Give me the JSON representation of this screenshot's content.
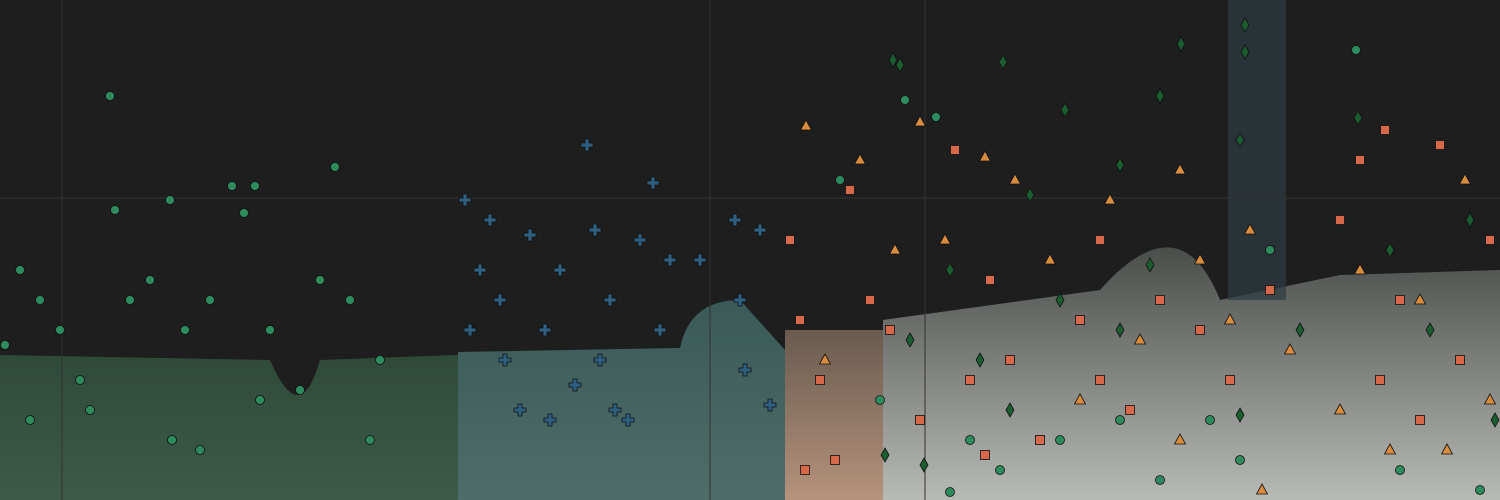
{
  "chart_data": {
    "type": "scatter",
    "xlim": [
      0,
      150
    ],
    "ylim": [
      0,
      100
    ],
    "series": [
      {
        "marker": "circle",
        "color": "#2e8b5e",
        "x": [
          0.5,
          2,
          4,
          6,
          8,
          11,
          11.5,
          13,
          15,
          17,
          18.5,
          21,
          23.2,
          24.4,
          25.5,
          27,
          30,
          32,
          33.5,
          35,
          37,
          38,
          3,
          9,
          20,
          17.2,
          26,
          88,
          90.5,
          93.6,
          95,
          100,
          106,
          112,
          116,
          124,
          127,
          135.6,
          140,
          148,
          139,
          84,
          97,
          121
        ],
        "values": [
          31,
          46,
          40,
          34,
          24,
          80.8,
          58,
          40,
          44,
          60,
          34,
          40,
          62.8,
          57.4,
          62.8,
          34,
          22,
          44,
          66.6,
          40,
          12,
          28,
          16,
          18,
          10,
          12,
          20,
          20,
          80,
          76.6,
          1.6,
          6,
          12,
          16,
          4,
          8,
          50,
          90,
          6,
          2,
          50,
          64,
          12,
          16
        ]
      },
      {
        "marker": "plus",
        "color": "#2f5f80",
        "x": [
          46.5,
          47,
          49,
          50,
          52,
          53,
          54.5,
          56,
          57.5,
          58.7,
          59.5,
          61,
          62.8,
          64,
          65.3,
          66,
          67,
          73.5,
          74,
          76,
          77,
          48,
          55,
          70,
          74.5,
          61.5,
          50.5,
          60
        ],
        "values": [
          60,
          34,
          56,
          40,
          18,
          53,
          34,
          46,
          23,
          71,
          54,
          40,
          16,
          52,
          63.4,
          34,
          48,
          56,
          40,
          54,
          19,
          46,
          16,
          48,
          26,
          18,
          28,
          28
        ]
      },
      {
        "marker": "square",
        "color": "#d9674a",
        "x": [
          79,
          80,
          80.5,
          82,
          83.5,
          85,
          87,
          89,
          92,
          95.5,
          97,
          99,
          101,
          104,
          108,
          110,
          113,
          116,
          120,
          123,
          127,
          134,
          136,
          138.5,
          140,
          142,
          144,
          146,
          149,
          138,
          98.5,
          110
        ],
        "values": [
          52,
          36,
          6,
          24,
          8,
          62,
          40,
          34,
          16,
          70,
          24,
          44,
          28,
          12,
          36,
          52,
          18,
          40,
          34,
          24,
          42,
          56,
          68,
          74,
          40,
          16,
          71,
          28,
          52,
          24,
          9,
          24
        ]
      },
      {
        "marker": "triangle",
        "color": "#d98c3e",
        "x": [
          80.6,
          82.5,
          86,
          89.5,
          92,
          94.5,
          98.5,
          101.5,
          105,
          108,
          111,
          114,
          118,
          120,
          123,
          125,
          126.2,
          129,
          136,
          139,
          142,
          144.7,
          146.5,
          149,
          134,
          118
        ],
        "values": [
          74.8,
          28,
          68,
          50,
          75.6,
          52,
          68.6,
          64,
          48,
          20,
          60,
          32,
          66,
          48,
          36,
          54,
          2,
          30,
          46,
          10,
          40,
          10,
          64,
          20,
          18,
          12
        ]
      },
      {
        "marker": "diamond",
        "color": "#1b5c31",
        "x": [
          89.3,
          90,
          100.3,
          106.5,
          116,
          118.1,
          124.5,
          124.5,
          124,
          112,
          103,
          95,
          91,
          88.5,
          92.4,
          98,
          106,
          115,
          124,
          130,
          135.8,
          139,
          143,
          147,
          149.5,
          112,
          101
        ],
        "values": [
          88,
          87,
          87.6,
          78,
          80.8,
          91.2,
          95,
          89.6,
          72,
          67,
          61,
          46,
          32,
          9,
          7,
          28,
          40,
          47,
          17,
          34,
          76.4,
          50,
          34,
          56,
          16,
          34,
          18
        ]
      }
    ]
  }
}
